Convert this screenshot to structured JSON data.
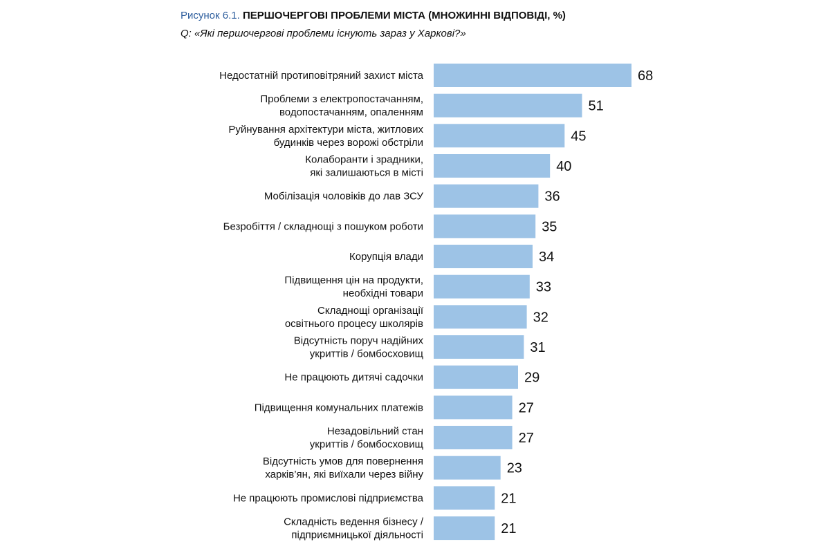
{
  "figure": {
    "prefix": "Рисунок 6.1.",
    "title": "ПЕРШОЧЕРГОВІ ПРОБЛЕМИ МІСТА (МНОЖИННІ ВІДПОВІДІ, %)",
    "question": "Q: «Які першочергові проблеми існують зараз у Харкові?»"
  },
  "colors": {
    "bar": "#9dc3e6",
    "title_prefix": "#2f5f9e"
  },
  "chart_data": {
    "type": "bar",
    "orientation": "horizontal",
    "title": "ПЕРШОЧЕРГОВІ ПРОБЛЕМИ МІСТА (МНОЖИННІ ВІДПОВІДІ, %)",
    "xlabel": "",
    "ylabel": "",
    "xlim": [
      0,
      68
    ],
    "grid": false,
    "categories": [
      [
        "Недостатній протиповітряний захист міста"
      ],
      [
        "Проблеми з електропостачанням,",
        "водопостачанням,  опаленням"
      ],
      [
        "Руйнування архітектури міста, житлових",
        "будинків через ворожі обстріли"
      ],
      [
        "Колаборанти і зрадники,",
        "які залишаються в місті"
      ],
      [
        "Мобілізація чоловіків до лав ЗСУ"
      ],
      [
        "Безробіття / складнощі з пошуком роботи"
      ],
      [
        "Корупція влади"
      ],
      [
        "Підвищення цін на продукти,",
        "необхідні товари"
      ],
      [
        "Складнощі організації",
        "освітнього процесу школярів"
      ],
      [
        "Відсутність поруч надійних",
        "укриттів / бомбосховищ"
      ],
      [
        "Не працюють дитячі садочки"
      ],
      [
        "Підвищення комунальних платежів"
      ],
      [
        "Незадовільний стан",
        "укриттів / бомбосховищ"
      ],
      [
        "Відсутність умов для повернення",
        "харків’ян, які виїхали через війну"
      ],
      [
        "Не працюють промислові підприємства"
      ],
      [
        "Складність ведення бізнесу /",
        "підприємницької діяльності"
      ]
    ],
    "values": [
      68,
      51,
      45,
      40,
      36,
      35,
      34,
      33,
      32,
      31,
      29,
      27,
      27,
      23,
      21,
      21
    ]
  }
}
